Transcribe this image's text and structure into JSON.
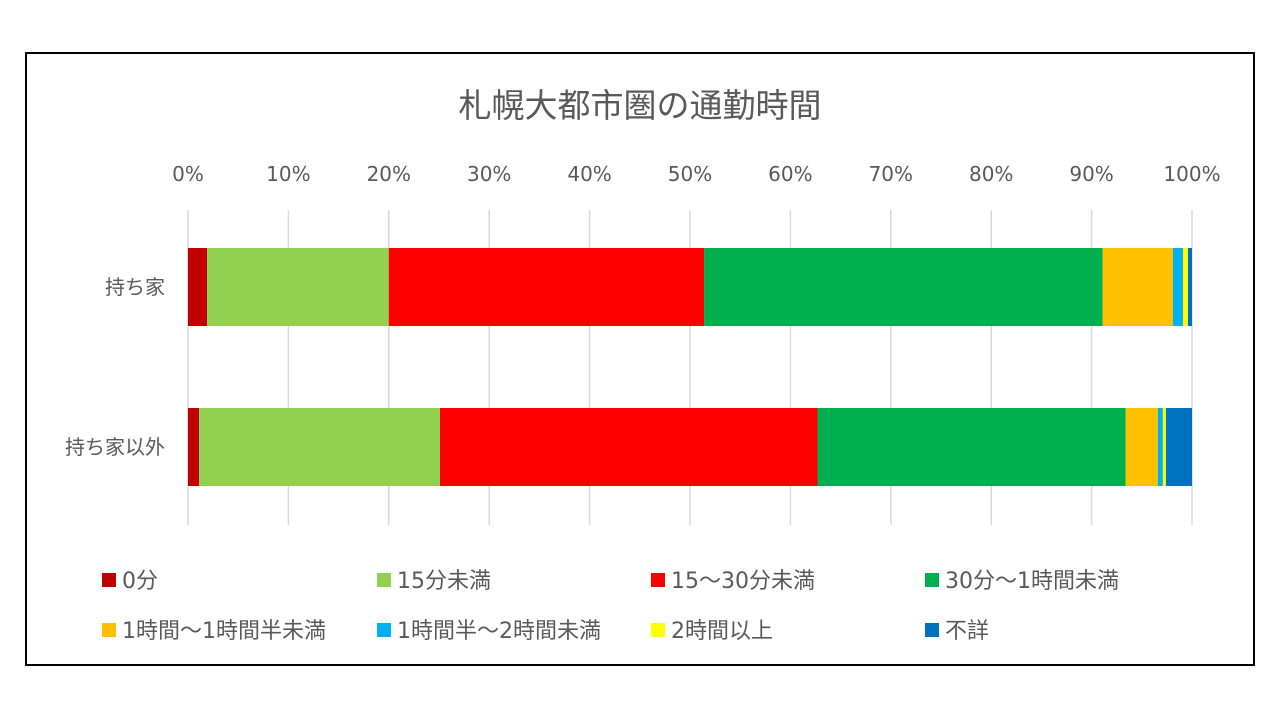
{
  "chart_data": {
    "type": "bar",
    "orientation": "horizontal",
    "stacked": "percent",
    "title": "札幌大都市圏の通勤時間",
    "categories": [
      "持ち家",
      "持ち家以外"
    ],
    "x_ticks": [
      "0%",
      "10%",
      "20%",
      "30%",
      "40%",
      "50%",
      "60%",
      "70%",
      "80%",
      "90%",
      "100%"
    ],
    "xlim": [
      0,
      100
    ],
    "grid": true,
    "legend_position": "bottom",
    "series": [
      {
        "name": "0分",
        "color": "#c00000",
        "values": [
          1.9,
          1.1
        ]
      },
      {
        "name": "15分未満",
        "color": "#92d050",
        "values": [
          18.1,
          24.0
        ]
      },
      {
        "name": "15～30分未満",
        "color": "#ff0000",
        "values": [
          31.4,
          37.6
        ]
      },
      {
        "name": "30分～1時間未満",
        "color": "#00b050",
        "values": [
          39.7,
          30.7
        ]
      },
      {
        "name": "1時間～1時間半未満",
        "color": "#ffc000",
        "values": [
          7.0,
          3.2
        ]
      },
      {
        "name": "1時間半～2時間未満",
        "color": "#00b0f0",
        "values": [
          1.0,
          0.5
        ]
      },
      {
        "name": "2時間以上",
        "color": "#ffff00",
        "values": [
          0.5,
          0.3
        ]
      },
      {
        "name": "不詳",
        "color": "#0070c0",
        "values": [
          0.4,
          2.6
        ]
      }
    ]
  }
}
